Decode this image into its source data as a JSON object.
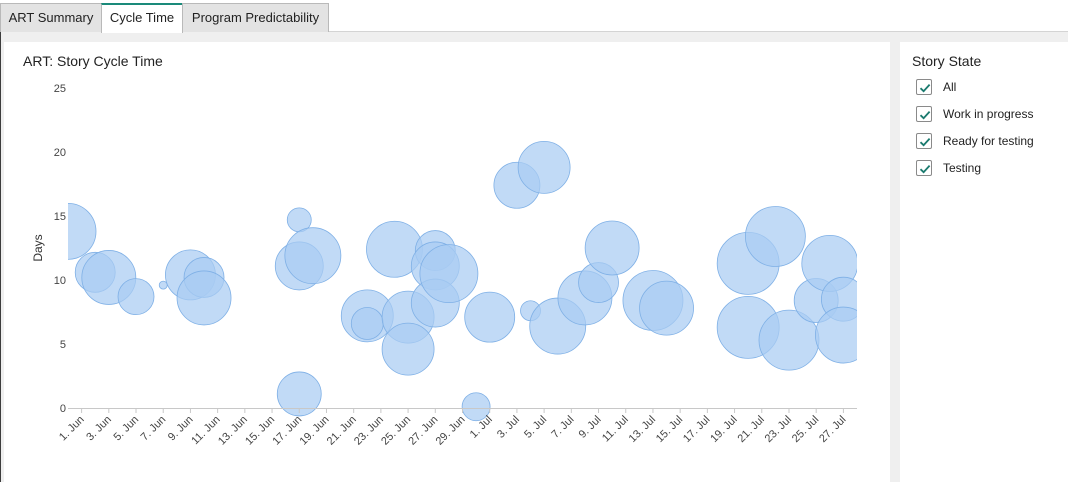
{
  "tabs": [
    {
      "label": "ART Summary",
      "active": false
    },
    {
      "label": "Cycle Time",
      "active": true
    },
    {
      "label": "Program Predictability",
      "active": false
    }
  ],
  "colors": {
    "accent": "#1a8a7a",
    "bubble_fill": "#a9ccf2",
    "bubble_stroke": "#7fb0e6",
    "checkmark": "#1a7a6e"
  },
  "filter": {
    "title": "Story State",
    "items": [
      {
        "label": "All",
        "checked": true
      },
      {
        "label": "Work in progress",
        "checked": true
      },
      {
        "label": "Ready for testing",
        "checked": true
      },
      {
        "label": "Testing",
        "checked": true
      }
    ]
  },
  "chart_data": {
    "type": "scatter",
    "subtype": "bubble",
    "title": "ART: Story Cycle Time",
    "xlabel": "",
    "ylabel": "Days",
    "ylim": [
      0,
      25
    ],
    "yticks": [
      0,
      5,
      10,
      15,
      20,
      25
    ],
    "xlim": [
      "2025-05-31",
      "2025-07-28"
    ],
    "xticks": [
      "1. Jun",
      "3. Jun",
      "5. Jun",
      "7. Jun",
      "9. Jun",
      "11. Jun",
      "13. Jun",
      "15. Jun",
      "17. Jun",
      "19. Jun",
      "21. Jun",
      "23. Jun",
      "25. Jun",
      "27. Jun",
      "29. Jun",
      "1. Jul",
      "3. Jul",
      "5. Jul",
      "7. Jul",
      "9. Jul",
      "11. Jul",
      "13. Jul",
      "15. Jul",
      "17. Jul",
      "19. Jul",
      "21. Jul",
      "23. Jul",
      "25. Jul",
      "27. Jul"
    ],
    "grid": false,
    "legend": "none",
    "points": [
      {
        "x": "2025-05-31",
        "y": 13.8,
        "r": 28
      },
      {
        "x": "2025-06-02",
        "y": 10.6,
        "r": 20
      },
      {
        "x": "2025-06-03",
        "y": 10.2,
        "r": 27
      },
      {
        "x": "2025-06-05",
        "y": 8.7,
        "r": 18
      },
      {
        "x": "2025-06-07",
        "y": 9.6,
        "r": 4
      },
      {
        "x": "2025-06-09",
        "y": 10.4,
        "r": 25
      },
      {
        "x": "2025-06-10",
        "y": 10.2,
        "r": 20
      },
      {
        "x": "2025-06-10",
        "y": 8.6,
        "r": 27
      },
      {
        "x": "2025-06-17",
        "y": 14.7,
        "r": 12
      },
      {
        "x": "2025-06-17",
        "y": 11.1,
        "r": 24
      },
      {
        "x": "2025-06-18",
        "y": 11.9,
        "r": 28
      },
      {
        "x": "2025-06-17",
        "y": 1.1,
        "r": 22
      },
      {
        "x": "2025-06-22",
        "y": 7.2,
        "r": 26
      },
      {
        "x": "2025-06-22",
        "y": 6.6,
        "r": 16
      },
      {
        "x": "2025-06-24",
        "y": 12.4,
        "r": 28
      },
      {
        "x": "2025-06-25",
        "y": 7.1,
        "r": 26
      },
      {
        "x": "2025-06-25",
        "y": 4.6,
        "r": 26
      },
      {
        "x": "2025-06-27",
        "y": 12.3,
        "r": 20
      },
      {
        "x": "2025-06-27",
        "y": 11.1,
        "r": 24
      },
      {
        "x": "2025-06-27",
        "y": 8.2,
        "r": 24
      },
      {
        "x": "2025-06-28",
        "y": 10.5,
        "r": 29
      },
      {
        "x": "2025-06-30",
        "y": 0.1,
        "r": 14
      },
      {
        "x": "2025-07-01",
        "y": 7.1,
        "r": 25
      },
      {
        "x": "2025-07-03",
        "y": 17.4,
        "r": 23
      },
      {
        "x": "2025-07-04",
        "y": 7.6,
        "r": 10
      },
      {
        "x": "2025-07-05",
        "y": 18.8,
        "r": 26
      },
      {
        "x": "2025-07-06",
        "y": 6.4,
        "r": 28
      },
      {
        "x": "2025-07-08",
        "y": 8.6,
        "r": 27
      },
      {
        "x": "2025-07-09",
        "y": 9.8,
        "r": 20
      },
      {
        "x": "2025-07-10",
        "y": 12.5,
        "r": 27
      },
      {
        "x": "2025-07-13",
        "y": 8.4,
        "r": 30
      },
      {
        "x": "2025-07-14",
        "y": 7.8,
        "r": 27
      },
      {
        "x": "2025-07-20",
        "y": 11.3,
        "r": 31
      },
      {
        "x": "2025-07-20",
        "y": 6.3,
        "r": 31
      },
      {
        "x": "2025-07-22",
        "y": 13.4,
        "r": 30
      },
      {
        "x": "2025-07-23",
        "y": 5.3,
        "r": 30
      },
      {
        "x": "2025-07-25",
        "y": 8.4,
        "r": 22
      },
      {
        "x": "2025-07-26",
        "y": 11.3,
        "r": 28
      },
      {
        "x": "2025-07-27",
        "y": 8.5,
        "r": 22
      },
      {
        "x": "2025-07-27",
        "y": 5.7,
        "r": 28
      }
    ]
  }
}
